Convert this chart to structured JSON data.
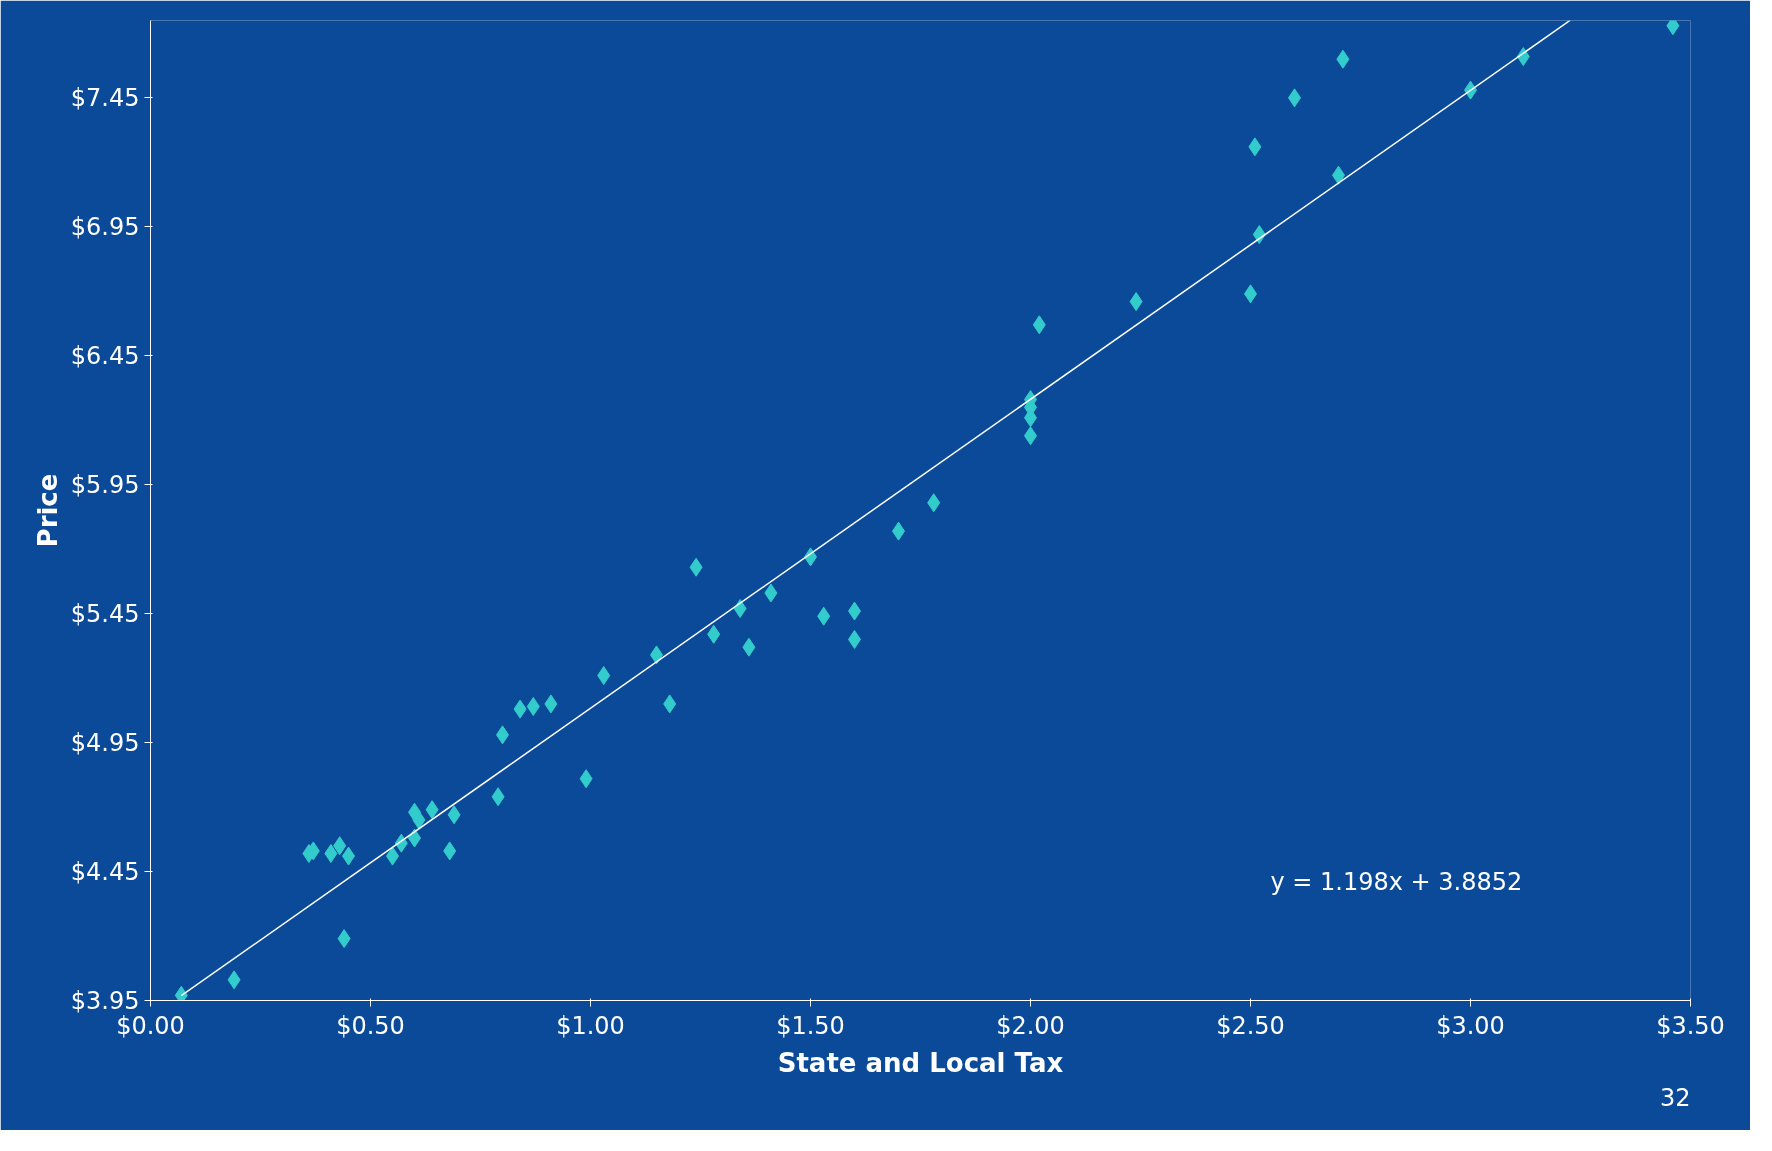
{
  "chart_data": {
    "type": "scatter",
    "xlabel": "State and Local Tax",
    "ylabel": "Price",
    "xlim": [
      0,
      3.5
    ],
    "ylim": [
      3.95,
      7.75
    ],
    "xticks": [
      {
        "value": 0,
        "label": "$0.00"
      },
      {
        "value": 0.5,
        "label": "$0.50"
      },
      {
        "value": 1,
        "label": "$1.00"
      },
      {
        "value": 1.5,
        "label": "$1.50"
      },
      {
        "value": 2,
        "label": "$2.00"
      },
      {
        "value": 2.5,
        "label": "$2.50"
      },
      {
        "value": 3,
        "label": "$3.00"
      },
      {
        "value": 3.5,
        "label": "$3.50"
      }
    ],
    "yticks": [
      {
        "value": 3.95,
        "label": "$3.95"
      },
      {
        "value": 4.45,
        "label": "$4.45"
      },
      {
        "value": 4.95,
        "label": "$4.95"
      },
      {
        "value": 5.45,
        "label": "$5.45"
      },
      {
        "value": 5.95,
        "label": "$5.95"
      },
      {
        "value": 6.45,
        "label": "$6.45"
      },
      {
        "value": 6.95,
        "label": "$6.95"
      },
      {
        "value": 7.45,
        "label": "$7.45"
      }
    ],
    "grid": false,
    "series": [
      {
        "marker": "diamond",
        "color": "#33cccc",
        "x": [
          0.07,
          0.19,
          0.36,
          0.37,
          0.41,
          0.43,
          0.45,
          0.44,
          0.55,
          0.57,
          0.6,
          0.6,
          0.61,
          0.64,
          0.68,
          0.69,
          0.79,
          0.8,
          0.84,
          0.87,
          0.91,
          0.99,
          1.03,
          1.15,
          1.18,
          1.24,
          1.28,
          1.34,
          1.36,
          1.41,
          1.5,
          1.53,
          1.6,
          1.6,
          1.7,
          1.78,
          2.0,
          2.0,
          2.0,
          2.0,
          2.02,
          2.24,
          2.5,
          2.52,
          2.51,
          2.6,
          2.7,
          2.71,
          3.0,
          3.12,
          3.46
        ],
        "values": [
          3.97,
          4.03,
          4.52,
          4.53,
          4.52,
          4.55,
          4.51,
          4.19,
          4.51,
          4.56,
          4.58,
          4.68,
          4.65,
          4.69,
          4.53,
          4.67,
          4.74,
          4.98,
          5.08,
          5.09,
          5.1,
          4.81,
          5.21,
          5.29,
          5.1,
          5.63,
          5.37,
          5.47,
          5.32,
          5.53,
          5.67,
          5.44,
          5.46,
          5.35,
          5.77,
          5.88,
          6.28,
          6.25,
          6.21,
          6.14,
          6.57,
          6.66,
          6.69,
          6.92,
          7.26,
          7.45,
          7.15,
          7.6,
          7.48,
          7.61,
          7.73
        ]
      },
      {
        "type": "line",
        "marker": "none",
        "color": "#ffffff",
        "x": [
          0.07,
          3.226
        ],
        "values": [
          3.969,
          7.75
        ]
      }
    ],
    "annotations": [
      "y = 1.198x + 3.8852",
      "32"
    ]
  }
}
